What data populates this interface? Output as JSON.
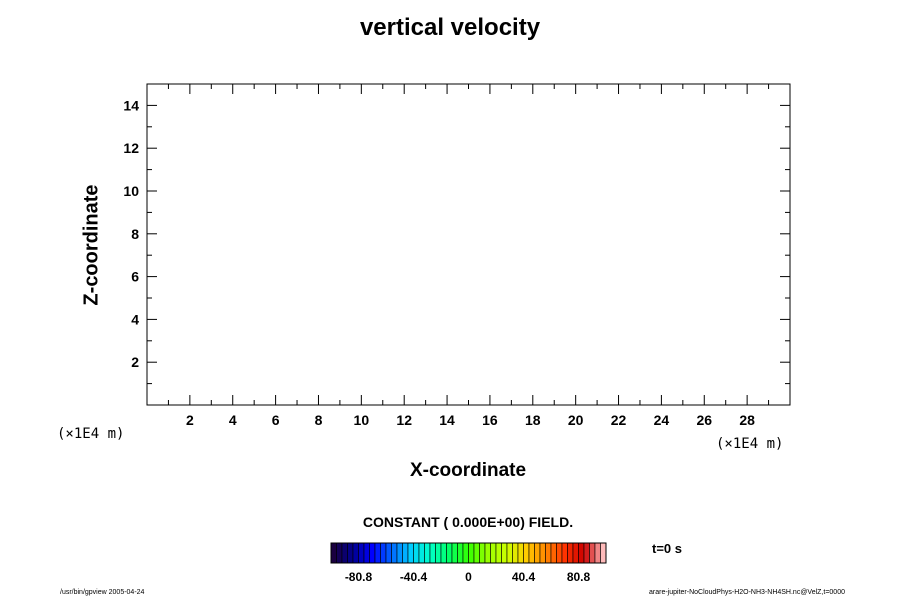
{
  "chart_data": {
    "type": "heatmap",
    "title": "vertical velocity",
    "xlabel": "X-coordinate",
    "ylabel": "Z-coordinate",
    "x_unit": "(×1E4 m)",
    "y_unit": "(×1E4 m)",
    "xlim": [
      0,
      30
    ],
    "ylim": [
      0,
      15
    ],
    "x_ticks": [
      2,
      4,
      6,
      8,
      10,
      12,
      14,
      16,
      18,
      20,
      22,
      24,
      26,
      28
    ],
    "y_ticks": [
      2,
      4,
      6,
      8,
      10,
      12,
      14
    ],
    "field_message": "CONSTANT ( 0.000E+00) FIELD.",
    "field_value": 0,
    "colorbar": {
      "min": -101,
      "max": 101,
      "tick_values": [
        -80.8,
        -40.4,
        0,
        40.4,
        80.8
      ],
      "tick_labels": [
        "-80.8",
        "-40.4",
        "0",
        "40.4",
        "80.8"
      ],
      "colors": [
        "#1a0040",
        "#000090",
        "#0000ff",
        "#0066ff",
        "#00ccff",
        "#00ffcc",
        "#00ff66",
        "#33ff00",
        "#99ff00",
        "#ccff00",
        "#ffcc00",
        "#ff8800",
        "#ff3300",
        "#cc0000",
        "#ffbbbb"
      ]
    },
    "time_label": "t=0 s"
  },
  "footer": {
    "left": "/usr/bin/gpview 2005-04-24",
    "right": "arare-jupiter-NoCloudPhys-H2O-NH3-NH4SH.nc@VelZ,t=0000"
  }
}
